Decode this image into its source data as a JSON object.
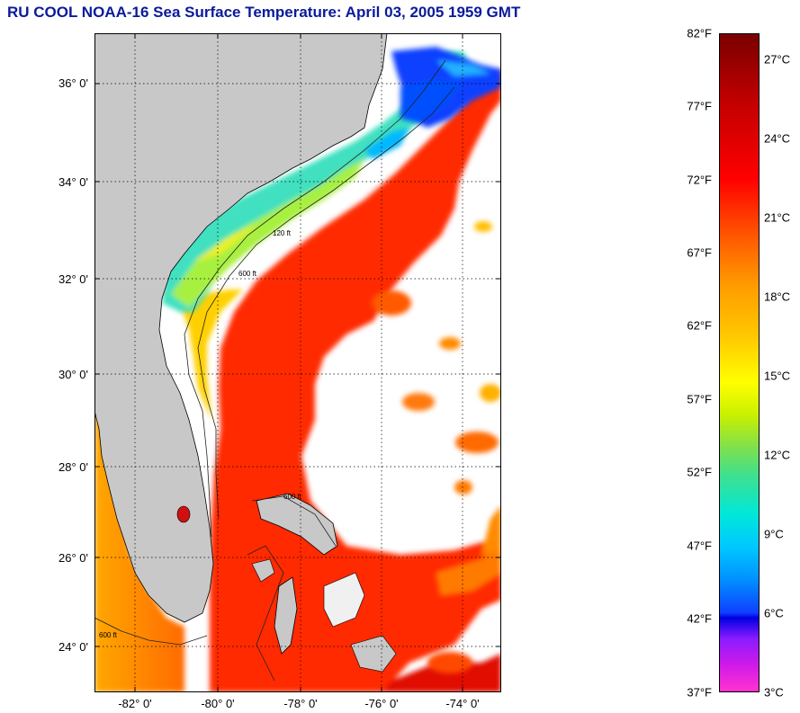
{
  "title": "RU COOL  NOAA-16  Sea Surface Temperature:  April 03, 2005 1959 GMT",
  "map": {
    "lat_labels": [
      "36° 0'",
      "34° 0'",
      "32° 0'",
      "30° 0'",
      "28° 0'",
      "26° 0'",
      "24° 0'"
    ],
    "lon_labels": [
      "-82° 0'",
      "-80° 0'",
      "-78° 0'",
      "-76° 0'",
      "-74° 0'"
    ],
    "isobath_labels": [
      "120 ft",
      "600 ft"
    ],
    "colors": {
      "land": "#c8c8c8",
      "cloud": "#ffffff",
      "gulf_stream": "#ff2a00",
      "shelf_cool": "#30e0e0",
      "shelf_warm": "#ffd000",
      "north_cold": "#1040ff"
    }
  },
  "colorbar": {
    "fahrenheit": [
      "82°F",
      "77°F",
      "72°F",
      "67°F",
      "62°F",
      "57°F",
      "52°F",
      "47°F",
      "42°F",
      "37°F"
    ],
    "celsius": [
      "27°C",
      "24°C",
      "21°C",
      "18°C",
      "15°C",
      "12°C",
      "9°C",
      "6°C",
      "3°C"
    ]
  }
}
